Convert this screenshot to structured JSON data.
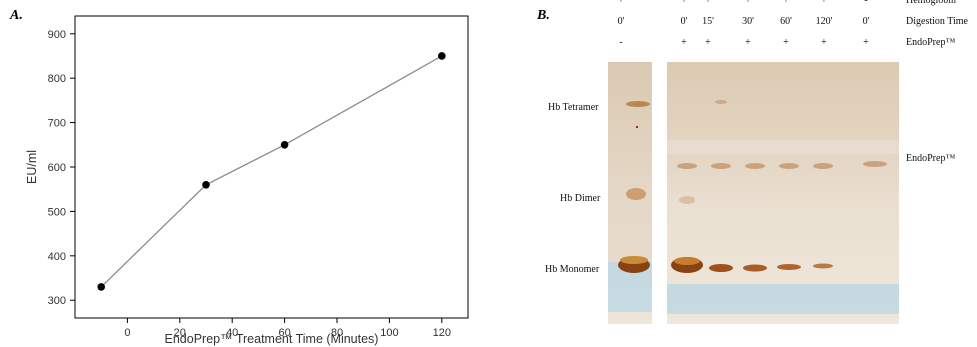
{
  "panel_a_letter": "A.",
  "panel_b_letter": "B.",
  "chart_data": {
    "type": "line",
    "title": "",
    "xlabel": "EndoPrep™ Treatment Time (Minutes)",
    "ylabel": "EU/ml",
    "x": [
      -10,
      30,
      60,
      120
    ],
    "y": [
      330,
      560,
      650,
      850
    ],
    "xlim": [
      -20,
      130
    ],
    "ylim": [
      260,
      940
    ],
    "xticks": [
      0,
      20,
      40,
      60,
      80,
      100,
      120
    ],
    "yticks": [
      300,
      400,
      500,
      600,
      700,
      800,
      900
    ],
    "grid": false,
    "line_color": "#8c8c8c",
    "marker_color": "#000000"
  },
  "gel": {
    "row_labels": [
      "Hemoglobin",
      "Digestion Time",
      "EndoPrep™"
    ],
    "lanes": [
      {
        "hemoglobin": "+",
        "time": "0'",
        "endoprep": "-"
      },
      {
        "hemoglobin": "+",
        "time": "0'",
        "endoprep": "+"
      },
      {
        "hemoglobin": "+",
        "time": "15'",
        "endoprep": "+"
      },
      {
        "hemoglobin": "+",
        "time": "30'",
        "endoprep": "+"
      },
      {
        "hemoglobin": "+",
        "time": "60'",
        "endoprep": "+"
      },
      {
        "hemoglobin": "+",
        "time": "120'",
        "endoprep": "+"
      },
      {
        "hemoglobin": "-",
        "time": "0'",
        "endoprep": "+"
      }
    ],
    "band_labels": {
      "tetramer": "Hb Tetramer",
      "dimer": "Hb Dimer",
      "monomer": "Hb Monomer",
      "endoprep": "EndoPrep™"
    },
    "colors": {
      "band_dark": "#a0521c",
      "band_light": "#c9a079",
      "background": "#e9dccb",
      "dye_front": "#a9cfe0"
    }
  }
}
